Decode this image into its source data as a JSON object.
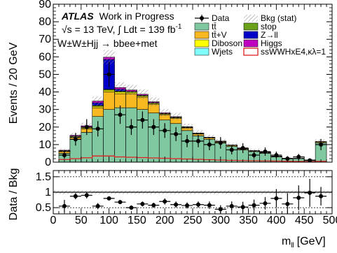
{
  "chart_data": [
    {
      "type": "bar",
      "stacked": true,
      "ylabel": "Events / 20 GeV",
      "xlim": [
        0,
        500
      ],
      "ylim": [
        0,
        90
      ],
      "bin_width": 20,
      "x": [
        20,
        40,
        60,
        80,
        100,
        120,
        140,
        160,
        180,
        200,
        220,
        240,
        260,
        280,
        300,
        320,
        340,
        360,
        380,
        400,
        420,
        440,
        460,
        480
      ],
      "text": {
        "experiment": "ATLAS",
        "status": "Work in Progress",
        "energy_prefix": "√s = 13 TeV, ∫ Ldt = 139 fb",
        "lumi_exponent": "-1",
        "channel": "W±W±Hjj → bbee+met"
      },
      "yticks": [
        "0",
        "10",
        "20",
        "30",
        "40",
        "50",
        "60",
        "70",
        "80",
        "90"
      ],
      "series": [
        {
          "name": "tt̄",
          "color": "#80c8a0",
          "values": [
            5,
            13,
            17,
            26,
            30,
            31,
            31,
            30,
            28,
            24,
            22,
            18,
            15,
            13,
            11,
            9,
            7,
            6,
            5,
            3,
            2,
            2,
            1,
            11
          ]
        },
        {
          "name": "tt̄+V",
          "color": "#f8b820",
          "values": [
            1,
            1,
            2,
            5,
            10,
            8,
            8,
            7,
            5,
            3,
            3,
            1.5,
            1,
            0.8,
            0.6,
            0.5,
            0.4,
            0.3,
            0.3,
            0.2,
            0.1,
            0.1,
            0.1,
            0.5
          ]
        },
        {
          "name": "Diboson",
          "color": "#ffff00",
          "values": [
            0.2,
            0.3,
            0.5,
            0.8,
            1,
            1,
            0.8,
            0.6,
            0.5,
            0.4,
            0.3,
            0.2,
            0.2,
            0.1,
            0.1,
            0.1,
            0.1,
            0.1,
            0.1,
            0.1,
            0.05,
            0.05,
            0.05,
            0.1
          ]
        },
        {
          "name": "Wjets",
          "color": "#80ffff",
          "values": [
            0,
            0,
            0,
            0,
            0,
            0,
            0,
            0,
            0,
            0,
            0,
            0,
            0,
            0,
            0,
            0,
            0,
            0,
            0,
            0,
            0,
            0,
            0,
            0
          ]
        },
        {
          "name": "stop",
          "color": "#6aa01a",
          "values": [
            0.3,
            0.5,
            0.5,
            0.5,
            0.5,
            0.5,
            0.5,
            0.5,
            0.4,
            0.3,
            0.3,
            0.3,
            0.2,
            0.2,
            0.2,
            0.1,
            0.1,
            0.1,
            0.1,
            0.1,
            0.05,
            0.05,
            0.05,
            0.1
          ]
        },
        {
          "name": "Z→ll",
          "color": "#0000c8",
          "values": [
            0,
            0,
            0,
            1.5,
            17,
            1,
            0,
            0,
            0,
            0,
            0,
            0,
            0,
            0,
            0,
            0,
            0,
            0,
            0,
            0,
            0,
            0,
            0,
            0
          ]
        },
        {
          "name": "Higgs",
          "color": "#c000c0",
          "values": [
            0.3,
            0.5,
            0.7,
            1,
            1.3,
            1,
            0.8,
            0.6,
            0.5,
            0.4,
            0.3,
            0.2,
            0.2,
            0.1,
            0.1,
            0.1,
            0.1,
            0.1,
            0.1,
            0.1,
            0.05,
            0.05,
            0.05,
            0.1
          ]
        }
      ],
      "signal": {
        "name": "ssWWHxE4,κλ=1",
        "color": "#e02020",
        "values": [
          1.5,
          2,
          2.5,
          3.5,
          3.5,
          3,
          2.8,
          2.6,
          2.4,
          2.2,
          2,
          1.8,
          1.6,
          1.4,
          1.2,
          1,
          0.9,
          0.8,
          0.7,
          0.6,
          0.5,
          0.4,
          0.3,
          0.5
        ]
      },
      "bkg_stat": {
        "name": "Bkg (stat)",
        "relative_uncertainty": 0.06
      },
      "data": {
        "name": "Data",
        "values": [
          4,
          13,
          20,
          19,
          50,
          27,
          20,
          24,
          20,
          18,
          16,
          12,
          12,
          10,
          11,
          7,
          8,
          4,
          6,
          4,
          2,
          3,
          1,
          10
        ],
        "errors": [
          2,
          3.6,
          4.5,
          4.4,
          7.1,
          5.2,
          4.5,
          4.9,
          4.5,
          4.2,
          4,
          3.5,
          3.5,
          3.2,
          3.3,
          2.6,
          2.8,
          2,
          2.4,
          2,
          1.4,
          1.7,
          1,
          3.2
        ]
      }
    },
    {
      "type": "scatter",
      "xlabel": "m",
      "xlabel_subscript": "ll",
      "xlabel_unit": "[GeV]",
      "ylabel": "Data / Bkg",
      "xlim": [
        0,
        500
      ],
      "ylim": [
        0.3,
        1.7
      ],
      "yticks": [
        "0.5",
        "1",
        "1.5"
      ],
      "xticks": [
        "0",
        "50",
        "100",
        "150",
        "200",
        "250",
        "300",
        "350",
        "400",
        "450",
        "500"
      ],
      "x": [
        20,
        40,
        60,
        80,
        100,
        120,
        140,
        160,
        180,
        200,
        220,
        240,
        260,
        280,
        300,
        320,
        340,
        360,
        380,
        400,
        420,
        440,
        460,
        480
      ],
      "values": [
        0.55,
        0.87,
        0.9,
        0.55,
        0.8,
        0.68,
        0.5,
        0.62,
        0.58,
        0.7,
        0.6,
        0.57,
        0.6,
        0.58,
        0.45,
        0.55,
        0.52,
        0.58,
        0.64,
        0.8,
        0.62,
        0.82,
        0.98,
        0.87
      ],
      "errors": [
        0.2,
        0.1,
        0.1,
        0.1,
        0.05,
        0.06,
        0.07,
        0.08,
        0.08,
        0.1,
        0.1,
        0.1,
        0.1,
        0.12,
        0.13,
        0.15,
        0.17,
        0.18,
        0.2,
        0.3,
        0.35,
        0.4,
        0.45,
        0.3
      ],
      "band_relative": 0.06
    }
  ]
}
